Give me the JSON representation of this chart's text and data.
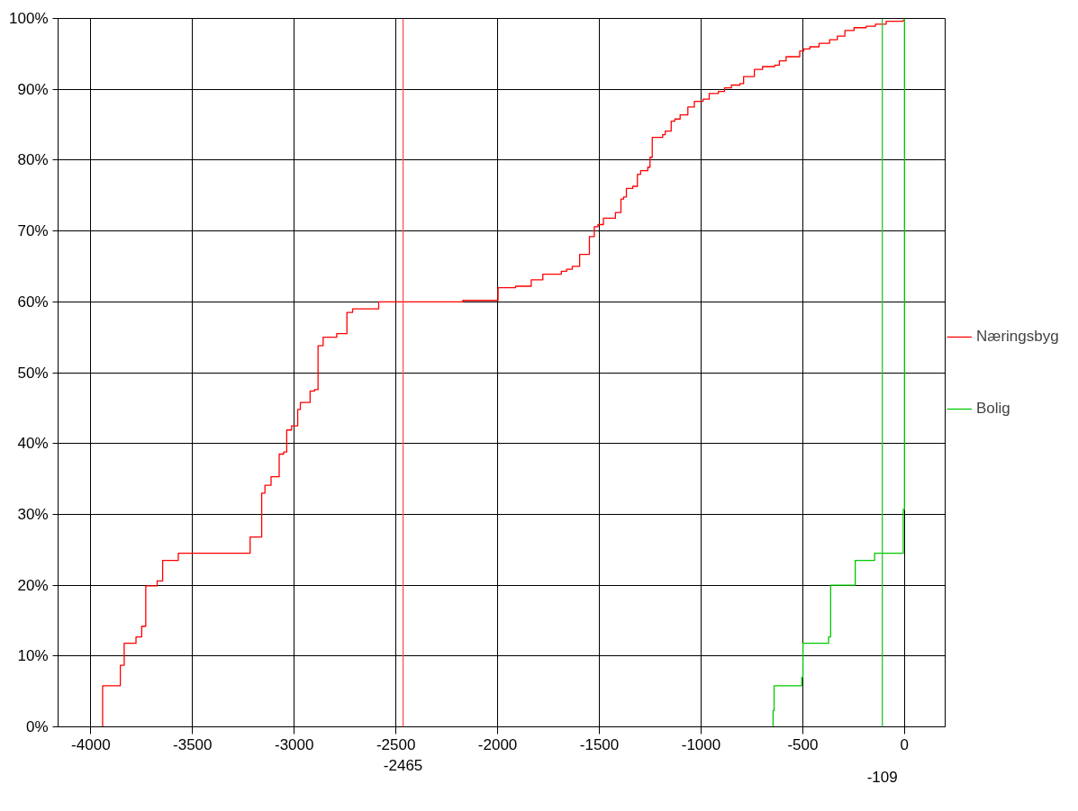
{
  "chart_data": {
    "type": "step",
    "xlim": [
      -4161,
      200
    ],
    "xticks": [
      -4000,
      -3500,
      -3000,
      -2500,
      -2000,
      -1500,
      -1000,
      -500,
      0
    ],
    "ylim": [
      0,
      100
    ],
    "yticks": [
      {
        "value": 0,
        "label": "0%"
      },
      {
        "value": 10,
        "label": "10%"
      },
      {
        "value": 20,
        "label": "20%"
      },
      {
        "value": 30,
        "label": "30%"
      },
      {
        "value": 40,
        "label": "40%"
      },
      {
        "value": 50,
        "label": "50%"
      },
      {
        "value": 60,
        "label": "60%"
      },
      {
        "value": 70,
        "label": "70%"
      },
      {
        "value": 80,
        "label": "80%"
      },
      {
        "value": 90,
        "label": "90%"
      },
      {
        "value": 100,
        "label": "100%"
      }
    ],
    "grid": true,
    "legend": "right",
    "marker": "none",
    "line_style": "solid",
    "series": [
      {
        "name": "Næringsbyg",
        "color": "#ff0000",
        "x": [
          -3942,
          -3942,
          -3855,
          -3836,
          -3778,
          -3750,
          -3730,
          -3674,
          -3647,
          -3570,
          -3217,
          -3160,
          -3144,
          -3114,
          -3074,
          -3052,
          -3037,
          -3013,
          -2983,
          -2970,
          -2922,
          -2900,
          -2883,
          -2858,
          -2791,
          -2741,
          -2713,
          -2585,
          -2171,
          -1998,
          -1912,
          -1835,
          -1778,
          -1687,
          -1661,
          -1633,
          -1597,
          -1549,
          -1525,
          -1507,
          -1480,
          -1421,
          -1394,
          -1381,
          -1367,
          -1336,
          -1313,
          -1297,
          -1262,
          -1251,
          -1240,
          -1189,
          -1176,
          -1147,
          -1129,
          -1103,
          -1065,
          -1033,
          -990,
          -960,
          -915,
          -885,
          -851,
          -809,
          -791,
          -738,
          -698,
          -638,
          -615,
          -582,
          -515,
          -495,
          -465,
          -420,
          -368,
          -330,
          -293,
          -248,
          -188,
          -143,
          -90,
          -8,
          0
        ],
        "values": [
          0,
          5.8,
          8.7,
          11.8,
          12.7,
          14.2,
          19.9,
          20.6,
          23.5,
          24.5,
          26.8,
          33.0,
          34.1,
          35.3,
          38.5,
          38.8,
          41.9,
          42.5,
          44.8,
          45.8,
          47.4,
          47.6,
          53.8,
          55.0,
          55.5,
          58.5,
          59.0,
          60.0,
          60.2,
          62.0,
          62.2,
          63.1,
          63.9,
          64.3,
          64.6,
          65.0,
          66.7,
          69.2,
          70.6,
          70.9,
          71.8,
          72.6,
          74.5,
          74.8,
          76.0,
          76.3,
          78.0,
          78.5,
          79.0,
          80.4,
          83.2,
          83.6,
          84.1,
          85.5,
          85.8,
          86.4,
          87.5,
          88.3,
          88.6,
          89.4,
          89.7,
          90.2,
          90.6,
          90.8,
          91.8,
          92.8,
          93.2,
          93.4,
          94.0,
          94.6,
          95.4,
          95.7,
          96.0,
          96.5,
          97.0,
          97.5,
          98.3,
          98.7,
          98.9,
          99.2,
          99.6,
          99.7,
          100
        ]
      },
      {
        "name": "Bolig",
        "color": "#00c800",
        "x": [
          -646,
          -646,
          -641,
          -505,
          -499,
          -373,
          -363,
          -242,
          -147,
          -6,
          0
        ],
        "values": [
          0,
          2.3,
          5.8,
          7.0,
          11.8,
          12.7,
          20.0,
          23.5,
          24.5,
          30.7,
          100
        ]
      }
    ],
    "ref_lines": [
      {
        "axis": "x",
        "value": -2465,
        "label": "-2465",
        "color": "#ff5050"
      },
      {
        "axis": "x",
        "value": -109,
        "label": "-109",
        "color": "#30c030"
      }
    ]
  }
}
